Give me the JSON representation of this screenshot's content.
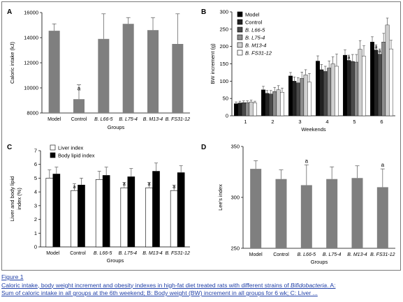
{
  "caption": {
    "title": "Figure 1",
    "line1_pre": "Caloric intake, body weight increment and obesity indexes in high-fat diet treated rats with different strains of ",
    "line1_italic": "Bifidobacteria",
    "line1_post": ". A:",
    "line2": "Sum of caloric intake in all groups at the 6th weekend; B: Body weight (BW) increment in all groups for 6 wk; C: Liver ..."
  },
  "colors": {
    "gray_bar": "#7f7f7f",
    "black": "#000000",
    "panelB_series": [
      "#000000",
      "#222222",
      "#4a4a4a",
      "#8c8c8c",
      "#cfcfcf",
      "#ffffff"
    ],
    "caption_link": "#1f3fa8"
  },
  "chart_data": [
    {
      "panel": "A",
      "type": "bar",
      "ylabel": "Caloric intake (kJ)",
      "xlabel": "Groups",
      "ylim": [
        8000,
        16000
      ],
      "yticks": [
        "8000",
        "10000",
        "12000",
        "14000",
        "16000"
      ],
      "categories": [
        "Model",
        "Control",
        "B. L66-5",
        "B. L75-4",
        "B. M13-4",
        "B. FS31-12"
      ],
      "values": [
        14550,
        9100,
        13900,
        15100,
        14600,
        13500
      ],
      "errors": [
        550,
        1150,
        2000,
        500,
        1000,
        2400
      ],
      "annotations": [
        "",
        "a",
        "",
        "",
        "",
        ""
      ]
    },
    {
      "panel": "B",
      "type": "bar",
      "ylabel": "BW increment (g)",
      "xlabel": "Weekends",
      "ylim": [
        0,
        300
      ],
      "yticks": [
        "0",
        "50",
        "100",
        "150",
        "200",
        "250",
        "300"
      ],
      "categories": [
        "1",
        "2",
        "3",
        "4",
        "5",
        "6"
      ],
      "legend": [
        "Model",
        "Control",
        "B. L66-5",
        "B. L75-4",
        "B. M13-4",
        "B. FS31-12"
      ],
      "legend_position": "top-left",
      "series": [
        {
          "name": "Model",
          "values": [
            35,
            75,
            115,
            158,
            175,
            213
          ],
          "errors": [
            5,
            10,
            10,
            15,
            15,
            15
          ]
        },
        {
          "name": "Control",
          "values": [
            37,
            65,
            100,
            133,
            160,
            190
          ],
          "errors": [
            5,
            8,
            12,
            15,
            15,
            15
          ]
        },
        {
          "name": "B. L66-5",
          "values": [
            38,
            63,
            95,
            128,
            157,
            178
          ],
          "errors": [
            5,
            10,
            15,
            15,
            20,
            15
          ]
        },
        {
          "name": "B. L75-4",
          "values": [
            38,
            70,
            108,
            138,
            155,
            213
          ],
          "errors": [
            5,
            12,
            18,
            20,
            22,
            25
          ]
        },
        {
          "name": "B. M13-4",
          "values": [
            40,
            75,
            118,
            150,
            192,
            262
          ],
          "errors": [
            5,
            12,
            15,
            20,
            25,
            20
          ]
        },
        {
          "name": "B. FS31-12",
          "values": [
            37,
            68,
            97,
            143,
            172,
            193
          ],
          "errors": [
            5,
            12,
            25,
            35,
            30,
            25
          ]
        }
      ],
      "annotations": [
        {
          "category": "5",
          "series": "Control",
          "text": "a"
        },
        {
          "category": "6",
          "series": "Control",
          "text": "a"
        },
        {
          "category": "6",
          "series": "B. L66-5",
          "text": "a"
        }
      ]
    },
    {
      "panel": "C",
      "type": "bar",
      "ylabel": "Liver and body lipid index (%)",
      "xlabel": "Groups",
      "ylim": [
        0,
        7
      ],
      "yticks": [
        "0",
        "1",
        "2",
        "3",
        "4",
        "5",
        "6",
        "7"
      ],
      "categories": [
        "Model",
        "Control",
        "B. L66-5",
        "B. L75-4",
        "B. M13-4",
        "B. FS31-12"
      ],
      "legend": [
        "Liver index",
        "Body lipid index"
      ],
      "legend_position": "top-left",
      "series": [
        {
          "name": "Liver index",
          "values": [
            5.0,
            4.1,
            4.9,
            4.3,
            4.3,
            4.1
          ],
          "errors": [
            0.6,
            0.5,
            0.6,
            0.4,
            0.4,
            0.4
          ]
        },
        {
          "name": "Body lipid index",
          "values": [
            5.3,
            4.5,
            5.2,
            5.1,
            5.5,
            5.4
          ],
          "errors": [
            0.5,
            0.5,
            0.6,
            0.6,
            0.6,
            0.5
          ]
        }
      ],
      "annotations": [
        {
          "category": "Control",
          "series": "Liver index",
          "text": "a"
        },
        {
          "category": "B. L75-4",
          "series": "Liver index",
          "text": "a"
        },
        {
          "category": "B. M13-4",
          "series": "Liver index",
          "text": "a"
        },
        {
          "category": "B. FS31-12",
          "series": "Liver index",
          "text": "a"
        }
      ]
    },
    {
      "panel": "D",
      "type": "bar",
      "ylabel": "Lee's index",
      "xlabel": "Groups",
      "ylim": [
        250,
        350
      ],
      "yticks": [
        "250",
        "300",
        "350"
      ],
      "categories": [
        "Model",
        "Control",
        "B. L66-5",
        "B. L75-4",
        "B. M13-4",
        "B. FS31-12"
      ],
      "values": [
        328,
        318,
        312,
        318,
        319,
        310
      ],
      "errors": [
        8,
        9,
        20,
        12,
        12,
        18
      ],
      "annotations": [
        "",
        "",
        "a",
        "",
        "",
        "a"
      ]
    }
  ]
}
